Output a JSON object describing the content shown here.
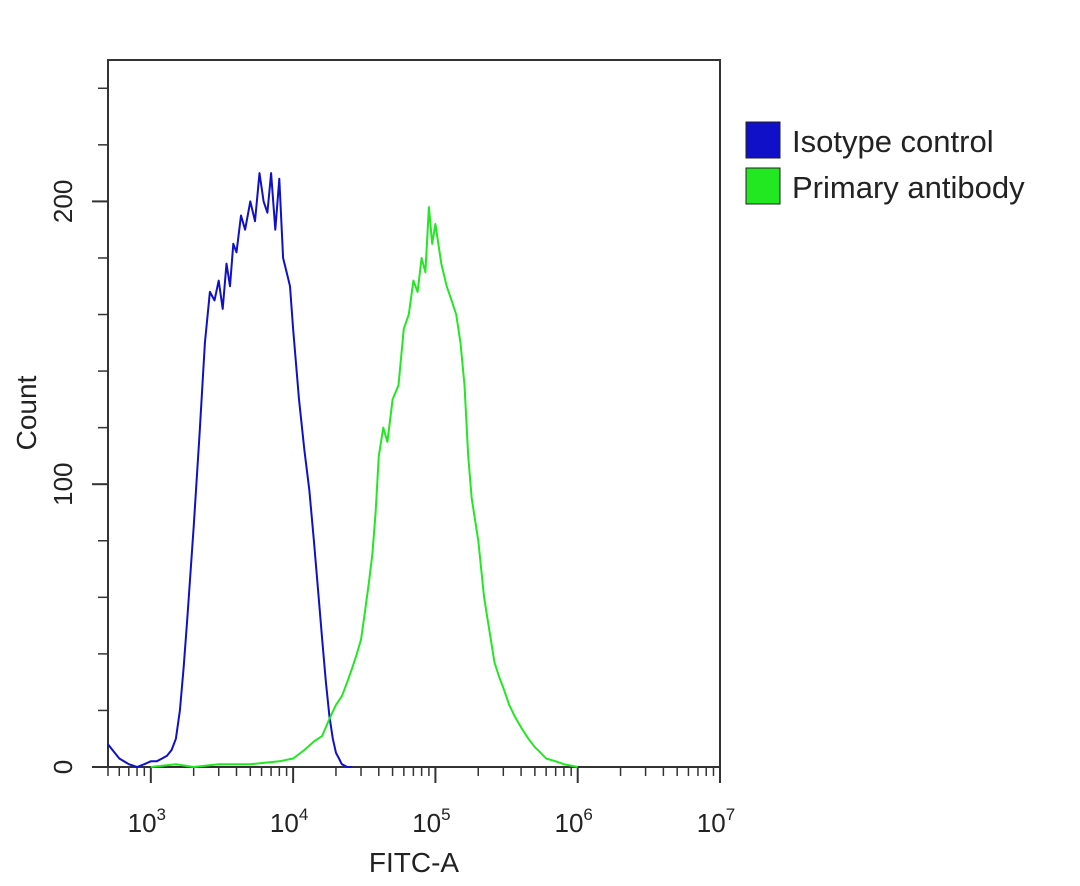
{
  "chart_data": {
    "type": "line",
    "xlabel": "FITC-A",
    "ylabel": "Count",
    "x_scale": "log",
    "xlim": [
      500,
      10000000
    ],
    "ylim": [
      0,
      250
    ],
    "x_ticks": [
      {
        "value": 1000,
        "base": "10",
        "exp": "3"
      },
      {
        "value": 10000,
        "base": "10",
        "exp": "4"
      },
      {
        "value": 100000,
        "base": "10",
        "exp": "5"
      },
      {
        "value": 1000000,
        "base": "10",
        "exp": "6"
      },
      {
        "value": 10000000,
        "base": "10",
        "exp": "7"
      }
    ],
    "y_ticks": [
      {
        "value": 0,
        "label": "0"
      },
      {
        "value": 100,
        "label": "100"
      },
      {
        "value": 200,
        "label": "200"
      }
    ],
    "grid": false,
    "legend_position": "right",
    "series": [
      {
        "name": "Isotype control",
        "color": "#1010c8",
        "x": [
          500,
          600,
          700,
          800,
          900,
          1000,
          1100,
          1200,
          1300,
          1400,
          1500,
          1600,
          1700,
          1800,
          2000,
          2200,
          2400,
          2600,
          2800,
          3000,
          3200,
          3400,
          3600,
          3800,
          4000,
          4300,
          4600,
          5000,
          5400,
          5800,
          6200,
          6600,
          7000,
          7500,
          8000,
          8500,
          9000,
          9500,
          10000,
          11000,
          12000,
          13000,
          14000,
          15000,
          16000,
          17000,
          18000,
          19000,
          20000,
          21000,
          22000,
          24000,
          26000
        ],
        "y": [
          8,
          3,
          1,
          0,
          1,
          2,
          2,
          3,
          4,
          6,
          10,
          20,
          35,
          52,
          85,
          118,
          150,
          168,
          165,
          172,
          162,
          178,
          170,
          185,
          182,
          195,
          190,
          200,
          193,
          210,
          200,
          196,
          210,
          190,
          208,
          180,
          175,
          170,
          155,
          130,
          112,
          98,
          80,
          62,
          45,
          30,
          18,
          10,
          5,
          3,
          1,
          0,
          0
        ]
      },
      {
        "name": "Primary antibody",
        "color": "#22e822",
        "x": [
          1000,
          1500,
          2000,
          3000,
          5000,
          8000,
          10000,
          12000,
          14000,
          16000,
          18000,
          20000,
          22000,
          24000,
          26000,
          28000,
          30000,
          32000,
          34000,
          36000,
          38000,
          40000,
          43000,
          46000,
          50000,
          55000,
          60000,
          65000,
          70000,
          75000,
          80000,
          85000,
          90000,
          95000,
          100000,
          110000,
          120000,
          130000,
          140000,
          150000,
          160000,
          170000,
          180000,
          200000,
          220000,
          240000,
          260000,
          280000,
          300000,
          330000,
          360000,
          400000,
          450000,
          500000,
          550000,
          600000,
          700000,
          800000,
          1000000
        ],
        "y": [
          0,
          1,
          0,
          1,
          1,
          2,
          3,
          6,
          9,
          11,
          17,
          22,
          25,
          30,
          35,
          40,
          45,
          55,
          65,
          75,
          90,
          110,
          120,
          115,
          130,
          135,
          155,
          160,
          172,
          168,
          180,
          175,
          198,
          185,
          192,
          178,
          170,
          165,
          160,
          150,
          135,
          110,
          95,
          80,
          60,
          48,
          37,
          32,
          28,
          22,
          18,
          14,
          10,
          7,
          5,
          3,
          2,
          1,
          0
        ]
      }
    ]
  }
}
